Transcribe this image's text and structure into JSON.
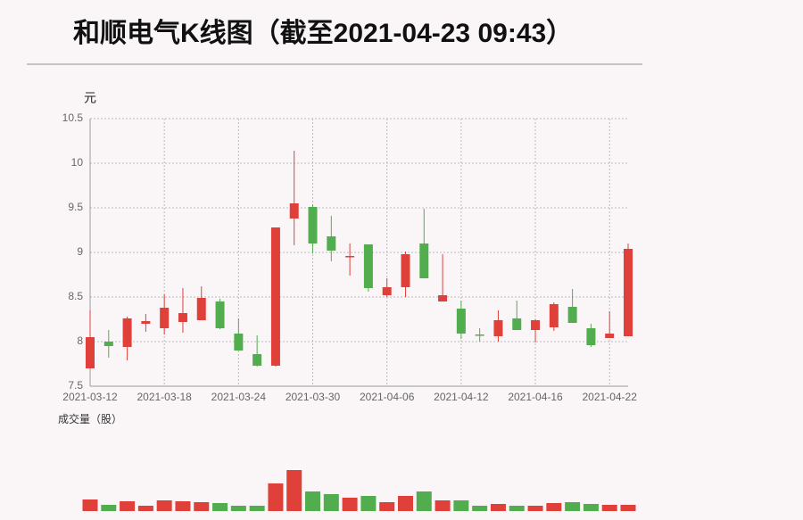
{
  "title": "和顺电气K线图（截至2021-04-23 09:43）",
  "chart_data": [
    {
      "type": "candlestick",
      "y_label": "元",
      "categories": [
        "2021-03-12",
        null,
        null,
        null,
        "2021-03-18",
        null,
        null,
        null,
        "2021-03-24",
        null,
        null,
        null,
        "2021-03-30",
        null,
        null,
        null,
        "2021-04-06",
        null,
        null,
        null,
        "2021-04-12",
        null,
        null,
        null,
        "2021-04-16",
        null,
        null,
        null,
        "2021-04-22",
        null
      ],
      "open": [
        7.7,
        8.0,
        7.94,
        8.2,
        8.15,
        8.22,
        8.24,
        8.45,
        8.09,
        7.86,
        7.73,
        9.38,
        9.51,
        9.18,
        8.95,
        9.09,
        8.52,
        8.61,
        9.1,
        8.45,
        8.37,
        8.08,
        8.06,
        8.26,
        8.13,
        8.16,
        8.39,
        8.15,
        8.04,
        8.06
      ],
      "high": [
        8.35,
        8.13,
        8.28,
        8.31,
        8.53,
        8.6,
        8.62,
        8.48,
        8.26,
        8.07,
        9.28,
        10.14,
        9.54,
        9.41,
        9.1,
        9.09,
        8.71,
        9.01,
        9.49,
        8.98,
        8.46,
        8.15,
        8.35,
        8.46,
        8.25,
        8.44,
        8.59,
        8.2,
        8.34,
        9.1
      ],
      "low": [
        7.7,
        7.82,
        7.79,
        8.11,
        8.08,
        8.1,
        8.24,
        8.14,
        7.9,
        7.72,
        7.72,
        9.08,
        8.99,
        8.9,
        8.74,
        8.56,
        8.5,
        8.5,
        8.71,
        8.45,
        8.03,
        8.0,
        8.0,
        8.13,
        7.99,
        8.12,
        8.21,
        7.94,
        8.04,
        8.06
      ],
      "close": [
        8.05,
        7.95,
        8.26,
        8.23,
        8.38,
        8.32,
        8.49,
        8.15,
        7.9,
        7.73,
        9.28,
        9.55,
        9.1,
        9.02,
        8.96,
        8.6,
        8.61,
        8.98,
        8.71,
        8.52,
        8.09,
        8.07,
        8.24,
        8.13,
        8.24,
        8.42,
        8.21,
        7.96,
        8.09,
        9.04
      ],
      "up_color": "#e0403a",
      "down_color": "#52ad4e",
      "ylim": [
        7.5,
        10.5
      ],
      "yticks": [
        7.5,
        8,
        8.5,
        9,
        9.5,
        10,
        10.5
      ],
      "grid": true
    },
    {
      "type": "bar",
      "title": "成交量（股）",
      "values": [
        13,
        7,
        11,
        6,
        12,
        11,
        10,
        9,
        6,
        6,
        31,
        46,
        22,
        19,
        15,
        17,
        10,
        17,
        22,
        12,
        12,
        6,
        8,
        6,
        6,
        9,
        10,
        8,
        7,
        7
      ]
    }
  ]
}
